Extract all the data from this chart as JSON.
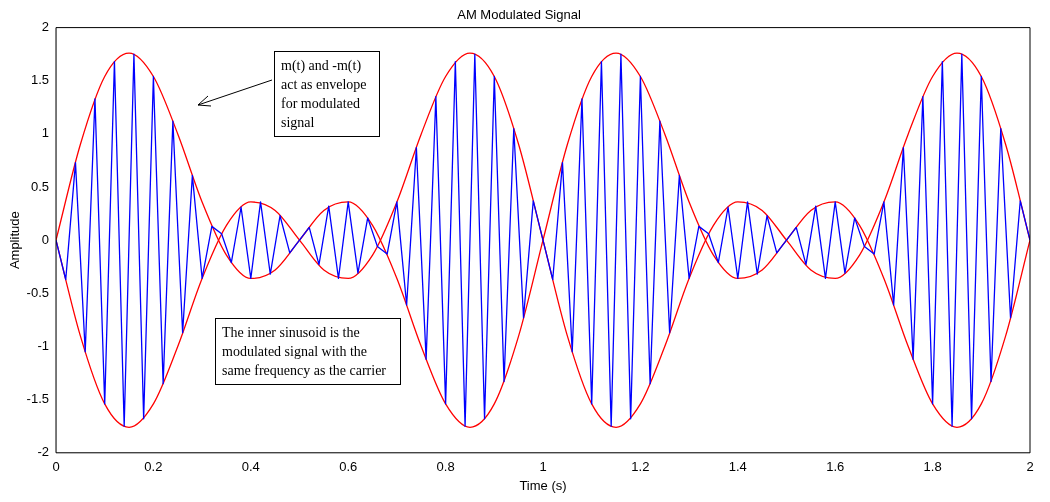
{
  "chart_data": {
    "type": "line",
    "title": "AM Modulated Signal",
    "xlabel": "Time (s)",
    "ylabel": "Amplitude",
    "xlim": [
      0,
      2
    ],
    "xticks": [
      0,
      0.2,
      0.4,
      0.6,
      0.8,
      1,
      1.2,
      1.4,
      1.6,
      1.8,
      2
    ],
    "ylim": [
      -2,
      2
    ],
    "yticks": [
      -2,
      -1.5,
      -1,
      -0.5,
      0,
      0.5,
      1,
      1.5,
      2
    ],
    "grid": false,
    "legend": false,
    "marker": "none",
    "line_style": "solid",
    "annotations": [
      "m(t) and -m(t) act as envelope for modulated signal",
      "The inner sinusoid is the modulated signal with the same frequency as the carrier"
    ],
    "series": [
      {
        "color": "#0000ff",
        "x": [
          0,
          0.02,
          0.04,
          0.06,
          0.08,
          0.1,
          0.12,
          0.14,
          0.16,
          0.18,
          0.2,
          0.22,
          0.24,
          0.26,
          0.28,
          0.3,
          0.32,
          0.34,
          0.36,
          0.38,
          0.4,
          0.42,
          0.44,
          0.46,
          0.48,
          0.5,
          0.52,
          0.54,
          0.56,
          0.58,
          0.6,
          0.62,
          0.64,
          0.66,
          0.68,
          0.7,
          0.72,
          0.74,
          0.76,
          0.78,
          0.8,
          0.82,
          0.84,
          0.86,
          0.88,
          0.9,
          0.92,
          0.94,
          0.96,
          0.98,
          1,
          1.02,
          1.04,
          1.06,
          1.08,
          1.1,
          1.12,
          1.14,
          1.16,
          1.18,
          1.2,
          1.22,
          1.24,
          1.26,
          1.28,
          1.3,
          1.32,
          1.34,
          1.36,
          1.38,
          1.4,
          1.42,
          1.44,
          1.46,
          1.48,
          1.5,
          1.52,
          1.54,
          1.56,
          1.58,
          1.6,
          1.62,
          1.64,
          1.66,
          1.68,
          1.7,
          1.72,
          1.74,
          1.76,
          1.78,
          1.8,
          1.82,
          1.84,
          1.86,
          1.88,
          1.9,
          1.92,
          1.94,
          1.96,
          1.98,
          2
        ],
        "values": [
          0,
          -0.37,
          0.73,
          -1.05,
          1.33,
          -1.54,
          1.68,
          -1.75,
          1.75,
          -1.68,
          1.54,
          -1.35,
          1.12,
          -0.87,
          0.61,
          -0.36,
          0.13,
          0.06,
          -0.21,
          0.31,
          -0.36,
          0.36,
          -0.32,
          0.23,
          -0.12,
          0,
          0.12,
          -0.23,
          0.32,
          -0.36,
          0.36,
          -0.31,
          0.21,
          -0.06,
          -0.13,
          0.36,
          -0.61,
          0.87,
          -1.12,
          1.35,
          -1.54,
          1.68,
          -1.75,
          1.75,
          -1.68,
          1.54,
          -1.33,
          1.05,
          -0.73,
          0.37,
          0,
          -0.37,
          0.73,
          -1.05,
          1.33,
          -1.54,
          1.68,
          -1.75,
          1.75,
          -1.68,
          1.54,
          -1.35,
          1.12,
          -0.87,
          0.61,
          -0.36,
          0.13,
          0.06,
          -0.21,
          0.31,
          -0.36,
          0.36,
          -0.32,
          0.23,
          -0.12,
          0,
          0.12,
          -0.23,
          0.32,
          -0.36,
          0.36,
          -0.31,
          0.21,
          -0.06,
          -0.13,
          0.36,
          -0.61,
          0.87,
          -1.12,
          1.35,
          -1.54,
          1.68,
          -1.75,
          1.75,
          -1.68,
          1.54,
          -1.33,
          1.05,
          -0.73,
          0.37,
          0
        ]
      },
      {
        "color": "#ff0000",
        "x": [
          0,
          0.05,
          0.1,
          0.15,
          0.2,
          0.25,
          0.3,
          0.35,
          0.4,
          0.45,
          0.5,
          0.55,
          0.6,
          0.65,
          0.7,
          0.75,
          0.8,
          0.85,
          0.9,
          0.95,
          1,
          1.05,
          1.1,
          1.15,
          1.2,
          1.25,
          1.3,
          1.35,
          1.4,
          1.45,
          1.5,
          1.55,
          1.6,
          1.65,
          1.7,
          1.75,
          1.8,
          1.85,
          1.9,
          1.95,
          2
        ],
        "values": [
          0,
          0.9,
          1.54,
          1.76,
          1.54,
          1,
          0.36,
          -0.14,
          -0.36,
          -0.28,
          0,
          0.28,
          0.36,
          0.14,
          -0.36,
          -1,
          -1.54,
          -1.76,
          -1.54,
          -0.9,
          0,
          0.9,
          1.54,
          1.76,
          1.54,
          1,
          0.36,
          -0.14,
          -0.36,
          -0.28,
          0,
          0.28,
          0.36,
          0.14,
          -0.36,
          -1,
          -1.54,
          -1.76,
          -1.54,
          -0.9,
          0
        ]
      },
      {
        "color": "#ff0000",
        "x": [
          0,
          0.05,
          0.1,
          0.15,
          0.2,
          0.25,
          0.3,
          0.35,
          0.4,
          0.45,
          0.5,
          0.55,
          0.6,
          0.65,
          0.7,
          0.75,
          0.8,
          0.85,
          0.9,
          0.95,
          1,
          1.05,
          1.1,
          1.15,
          1.2,
          1.25,
          1.3,
          1.35,
          1.4,
          1.45,
          1.5,
          1.55,
          1.6,
          1.65,
          1.7,
          1.75,
          1.8,
          1.85,
          1.9,
          1.95,
          2
        ],
        "values": [
          0,
          -0.9,
          -1.54,
          -1.76,
          -1.54,
          -1,
          -0.36,
          0.14,
          0.36,
          0.28,
          0,
          -0.28,
          -0.36,
          -0.14,
          0.36,
          1,
          1.54,
          1.76,
          1.54,
          0.9,
          0,
          -0.9,
          -1.54,
          -1.76,
          -1.54,
          -1,
          -0.36,
          0.14,
          0.36,
          0.28,
          0,
          -0.28,
          -0.36,
          -0.14,
          0.36,
          1,
          1.54,
          1.76,
          1.54,
          0.9,
          0
        ]
      }
    ]
  }
}
